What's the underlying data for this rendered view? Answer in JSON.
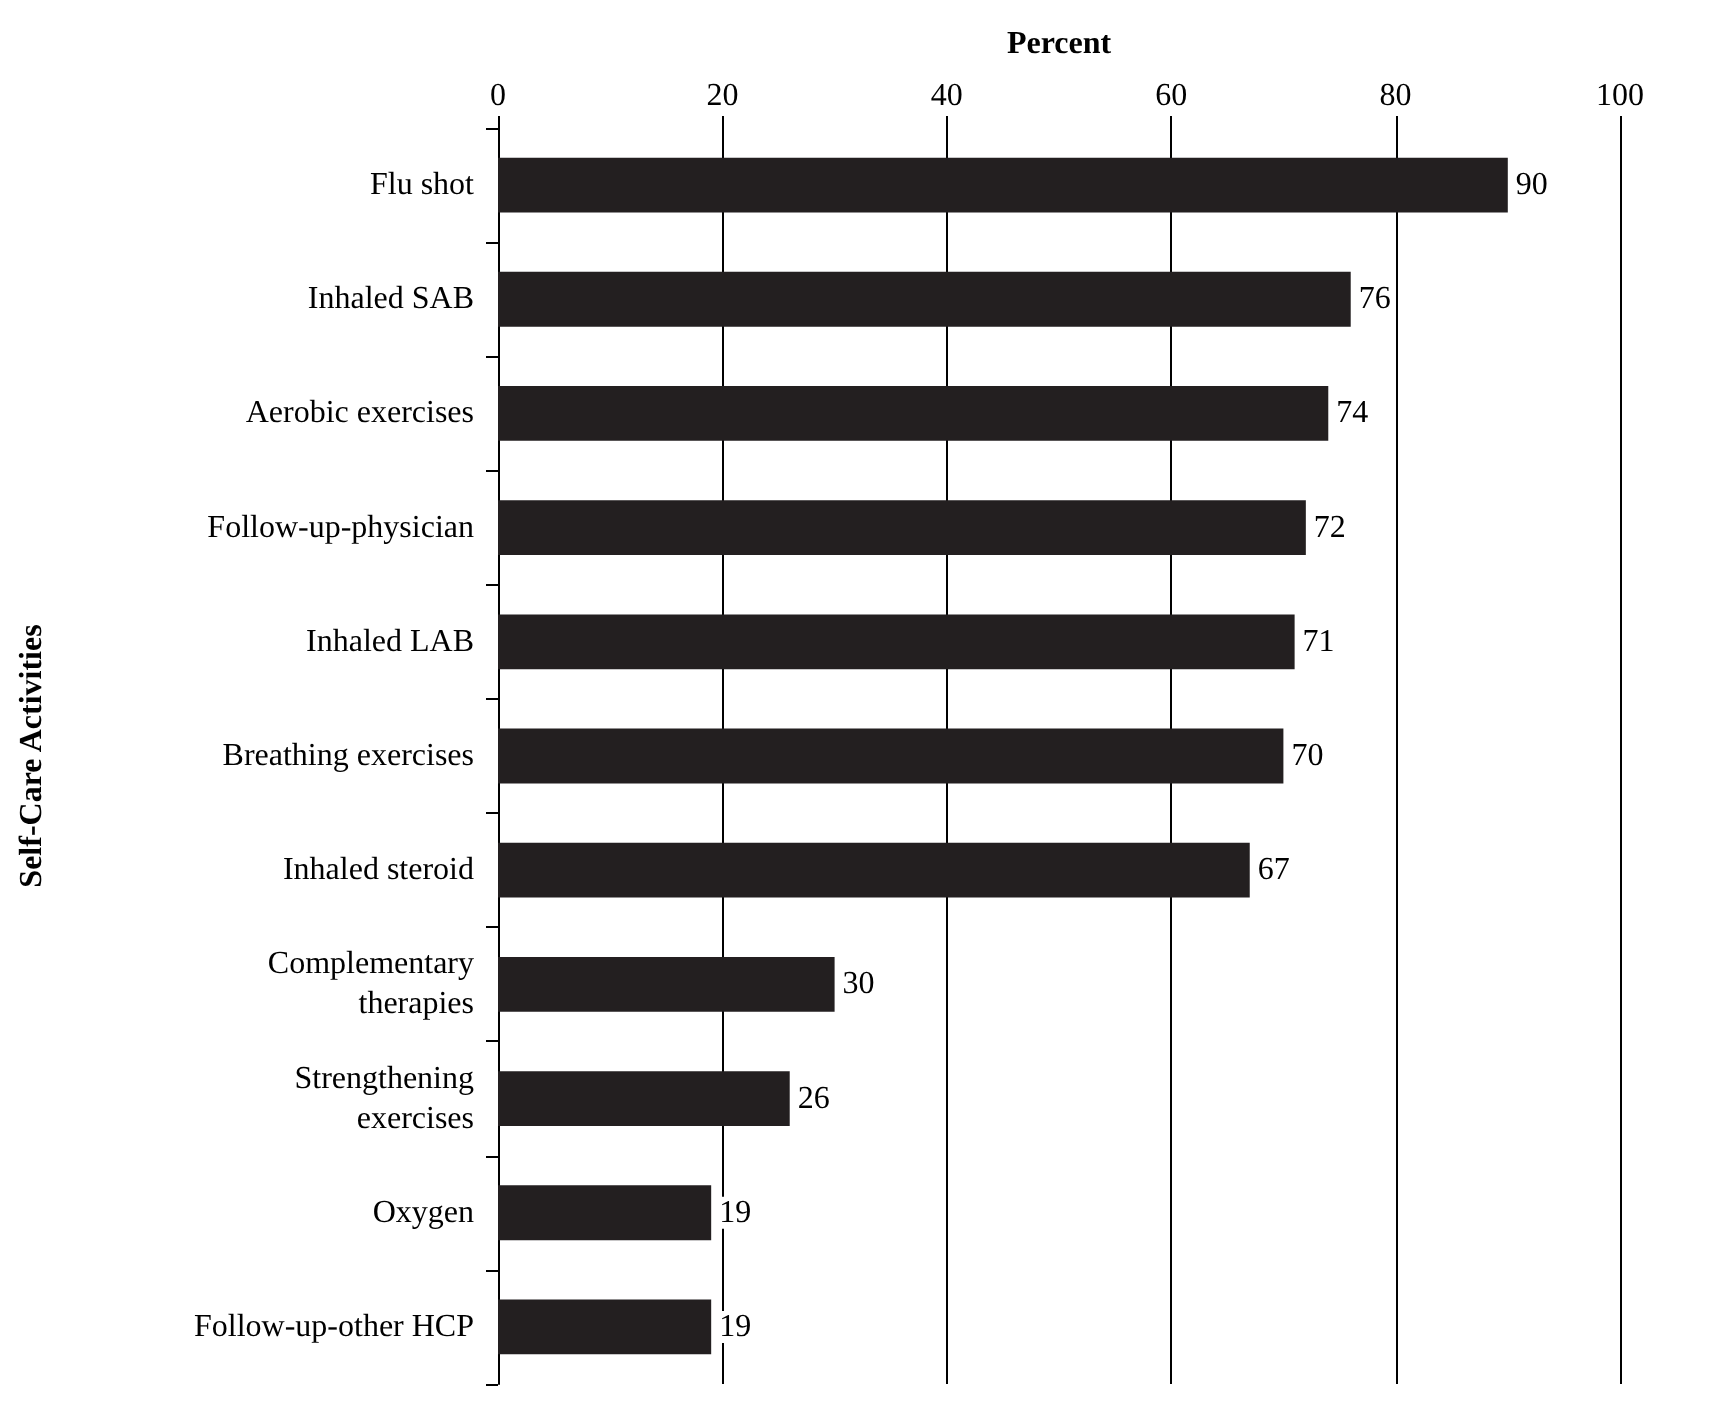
{
  "chart_data": {
    "type": "bar",
    "orientation": "horizontal",
    "xlabel": "Percent",
    "ylabel": "Self-Care Activities",
    "categories": [
      "Flu shot",
      "Inhaled SAB",
      "Aerobic exercises",
      "Follow-up-physician",
      "Inhaled LAB",
      "Breathing exercises",
      "Inhaled steroid",
      "Complementary\ntherapies",
      "Strengthening\nexercises",
      "Oxygen",
      "Follow-up-other HCP"
    ],
    "values": [
      90,
      76,
      74,
      72,
      71,
      70,
      67,
      30,
      26,
      19,
      19
    ],
    "color": "#231f20",
    "xlim": [
      0,
      100
    ],
    "xticks": [
      0,
      20,
      40,
      60,
      80,
      100
    ],
    "grid": "x",
    "data_labels": true
  }
}
